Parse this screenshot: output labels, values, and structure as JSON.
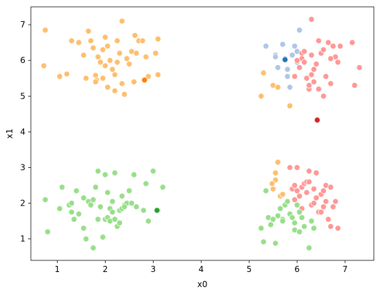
{
  "chart_data": {
    "type": "scatter",
    "title": "",
    "xlabel": "x0",
    "ylabel": "x1",
    "xlim": [
      0.45,
      7.6
    ],
    "ylim": [
      0.4,
      7.5
    ],
    "xticks": [
      1,
      2,
      3,
      4,
      5,
      6,
      7
    ],
    "yticks": [
      1,
      2,
      3,
      4,
      5,
      6,
      7
    ],
    "grid": false,
    "legend": "none",
    "series": [
      {
        "color": "#fdbf6f",
        "points": [
          [
            0.75,
            6.85
          ],
          [
            0.72,
            5.85
          ],
          [
            1.05,
            5.55
          ],
          [
            1.2,
            5.62
          ],
          [
            1.3,
            6.55
          ],
          [
            1.45,
            6.5
          ],
          [
            1.55,
            6.15
          ],
          [
            1.6,
            5.5
          ],
          [
            1.65,
            6.82
          ],
          [
            1.7,
            6.55
          ],
          [
            1.75,
            6.35
          ],
          [
            1.8,
            5.58
          ],
          [
            1.82,
            5.45
          ],
          [
            1.85,
            6.1
          ],
          [
            1.9,
            5.95
          ],
          [
            1.95,
            5.5
          ],
          [
            2.0,
            6.65
          ],
          [
            2.05,
            6.4
          ],
          [
            2.1,
            6.0
          ],
          [
            2.15,
            5.75
          ],
          [
            2.2,
            5.6
          ],
          [
            2.25,
            6.55
          ],
          [
            2.3,
            6.2
          ],
          [
            2.35,
            5.35
          ],
          [
            2.35,
            7.1
          ],
          [
            2.4,
            5.05
          ],
          [
            2.45,
            6.05
          ],
          [
            2.5,
            5.9
          ],
          [
            2.55,
            6.25
          ],
          [
            2.6,
            5.4
          ],
          [
            2.62,
            6.7
          ],
          [
            2.7,
            6.55
          ],
          [
            2.78,
            6.55
          ],
          [
            2.85,
            6.1
          ],
          [
            2.9,
            5.55
          ],
          [
            3.05,
            6.2
          ],
          [
            3.1,
            6.6
          ],
          [
            3.1,
            5.6
          ],
          [
            2.05,
            5.25
          ],
          [
            2.2,
            5.15
          ],
          [
            1.8,
            5.4
          ],
          [
            2.0,
            5.85
          ],
          [
            1.95,
            6.3
          ],
          [
            2.65,
            6.2
          ],
          [
            2.25,
            5.95
          ],
          [
            5.25,
            5.0
          ],
          [
            5.3,
            5.65
          ],
          [
            5.5,
            5.3
          ],
          [
            5.6,
            5.25
          ],
          [
            5.85,
            4.73
          ],
          [
            5.55,
            2.65
          ],
          [
            5.6,
            3.15
          ],
          [
            5.65,
            2.2
          ],
          [
            5.7,
            2.25
          ],
          [
            5.5,
            2.4
          ],
          [
            5.55,
            2.85
          ],
          [
            5.48,
            2.55
          ]
        ]
      },
      {
        "color": "#ff7f0e",
        "points": [
          [
            2.82,
            5.45
          ]
        ]
      },
      {
        "color": "#aec7e8",
        "points": [
          [
            5.35,
            6.4
          ],
          [
            5.55,
            6.15
          ],
          [
            5.6,
            5.8
          ],
          [
            5.7,
            6.45
          ],
          [
            5.75,
            6.05
          ],
          [
            5.8,
            5.55
          ],
          [
            5.85,
            5.25
          ],
          [
            5.9,
            6.15
          ],
          [
            5.95,
            6.4
          ],
          [
            6.0,
            5.95
          ],
          [
            6.05,
            6.85
          ],
          [
            5.55,
            6.1
          ],
          [
            5.8,
            5.75
          ],
          [
            6.0,
            6.25
          ]
        ]
      },
      {
        "color": "#1f77b4",
        "points": [
          [
            5.75,
            6.02
          ]
        ]
      },
      {
        "color": "#ff9896",
        "points": [
          [
            5.95,
            5.55
          ],
          [
            6.05,
            5.8
          ],
          [
            6.1,
            6.05
          ],
          [
            6.1,
            6.2
          ],
          [
            6.15,
            5.95
          ],
          [
            6.2,
            5.5
          ],
          [
            6.25,
            5.2
          ],
          [
            6.3,
            5.6
          ],
          [
            6.3,
            6.15
          ],
          [
            6.3,
            7.15
          ],
          [
            6.35,
            5.75
          ],
          [
            6.4,
            5.9
          ],
          [
            6.45,
            6.55
          ],
          [
            6.5,
            6.2
          ],
          [
            6.55,
            5.0
          ],
          [
            6.6,
            5.55
          ],
          [
            6.65,
            6.5
          ],
          [
            6.7,
            5.35
          ],
          [
            6.75,
            6.4
          ],
          [
            6.8,
            6.1
          ],
          [
            6.85,
            5.95
          ],
          [
            6.9,
            6.4
          ],
          [
            7.15,
            6.5
          ],
          [
            7.2,
            5.3
          ],
          [
            7.3,
            5.8
          ],
          [
            6.0,
            6.0
          ],
          [
            6.15,
            6.25
          ],
          [
            6.25,
            5.3
          ],
          [
            6.45,
            5.2
          ],
          [
            6.55,
            6.3
          ],
          [
            6.7,
            6.05
          ],
          [
            6.35,
            5.4
          ],
          [
            5.85,
            3.0
          ],
          [
            5.9,
            2.4
          ],
          [
            5.95,
            2.1
          ],
          [
            5.95,
            2.5
          ],
          [
            6.0,
            2.35
          ],
          [
            6.05,
            2.2
          ],
          [
            6.1,
            1.85
          ],
          [
            6.1,
            2.45
          ],
          [
            6.15,
            2.55
          ],
          [
            6.2,
            2.3
          ],
          [
            6.2,
            2.6
          ],
          [
            6.25,
            2.9
          ],
          [
            6.3,
            1.95
          ],
          [
            6.35,
            2.0
          ],
          [
            6.35,
            2.4
          ],
          [
            6.4,
            2.15
          ],
          [
            6.4,
            2.85
          ],
          [
            6.45,
            1.75
          ],
          [
            6.5,
            1.75
          ],
          [
            6.5,
            2.25
          ],
          [
            6.55,
            1.9
          ],
          [
            6.6,
            2.5
          ],
          [
            6.6,
            2.05
          ],
          [
            6.65,
            1.55
          ],
          [
            6.7,
            1.35
          ],
          [
            6.7,
            2.45
          ],
          [
            6.75,
            1.9
          ],
          [
            6.8,
            2.05
          ],
          [
            6.85,
            1.3
          ],
          [
            6.0,
            3.0
          ],
          [
            6.25,
            2.6
          ],
          [
            6.55,
            2.35
          ]
        ]
      },
      {
        "color": "#d62728",
        "points": [
          [
            6.42,
            4.33
          ]
        ]
      },
      {
        "color": "#98df8a",
        "points": [
          [
            0.75,
            2.1
          ],
          [
            0.8,
            1.2
          ],
          [
            1.05,
            1.85
          ],
          [
            1.1,
            2.45
          ],
          [
            1.25,
            1.95
          ],
          [
            1.3,
            1.75
          ],
          [
            1.3,
            2.0
          ],
          [
            1.35,
            1.55
          ],
          [
            1.4,
            2.35
          ],
          [
            1.45,
            1.7
          ],
          [
            1.55,
            1.3
          ],
          [
            1.55,
            2.15
          ],
          [
            1.6,
            1.0
          ],
          [
            1.65,
            2.05
          ],
          [
            1.7,
            1.95
          ],
          [
            1.75,
            2.1
          ],
          [
            1.75,
            0.75
          ],
          [
            1.8,
            2.45
          ],
          [
            1.85,
            2.9
          ],
          [
            1.9,
            1.9
          ],
          [
            1.95,
            1.05
          ],
          [
            2.0,
            1.55
          ],
          [
            2.0,
            2.8
          ],
          [
            2.05,
            2.3
          ],
          [
            2.05,
            1.6
          ],
          [
            2.1,
            1.85
          ],
          [
            2.1,
            1.5
          ],
          [
            2.15,
            2.05
          ],
          [
            2.2,
            1.55
          ],
          [
            2.2,
            2.85
          ],
          [
            2.25,
            1.35
          ],
          [
            2.3,
            1.45
          ],
          [
            2.3,
            1.8
          ],
          [
            2.35,
            2.2
          ],
          [
            2.35,
            1.85
          ],
          [
            2.4,
            1.95
          ],
          [
            2.45,
            2.0
          ],
          [
            2.5,
            2.35
          ],
          [
            2.55,
            2.0
          ],
          [
            2.6,
            2.8
          ],
          [
            2.65,
            1.9
          ],
          [
            2.8,
            1.8
          ],
          [
            2.85,
            2.55
          ],
          [
            2.9,
            1.5
          ],
          [
            3.0,
            2.9
          ],
          [
            3.1,
            1.8
          ],
          [
            3.2,
            2.45
          ],
          [
            1.85,
            1.55
          ],
          [
            2.15,
            1.75
          ],
          [
            2.4,
            1.9
          ],
          [
            5.25,
            1.3
          ],
          [
            5.3,
            0.92
          ],
          [
            5.35,
            2.35
          ],
          [
            5.4,
            1.6
          ],
          [
            5.45,
            1.4
          ],
          [
            5.5,
            1.55
          ],
          [
            5.55,
            0.88
          ],
          [
            5.6,
            1.65
          ],
          [
            5.65,
            1.85
          ],
          [
            5.7,
            1.55
          ],
          [
            5.75,
            1.95
          ],
          [
            5.8,
            2.05
          ],
          [
            5.85,
            1.7
          ],
          [
            5.9,
            1.6
          ],
          [
            5.95,
            1.25
          ],
          [
            5.95,
            1.45
          ],
          [
            6.0,
            1.95
          ],
          [
            6.05,
            1.2
          ],
          [
            6.1,
            1.6
          ],
          [
            6.15,
            1.35
          ],
          [
            6.25,
            0.75
          ],
          [
            6.3,
            1.5
          ],
          [
            6.35,
            1.3
          ],
          [
            5.7,
            1.5
          ],
          [
            6.05,
            1.75
          ]
        ]
      },
      {
        "color": "#2ca02c",
        "points": [
          [
            3.08,
            1.8
          ]
        ]
      }
    ]
  }
}
